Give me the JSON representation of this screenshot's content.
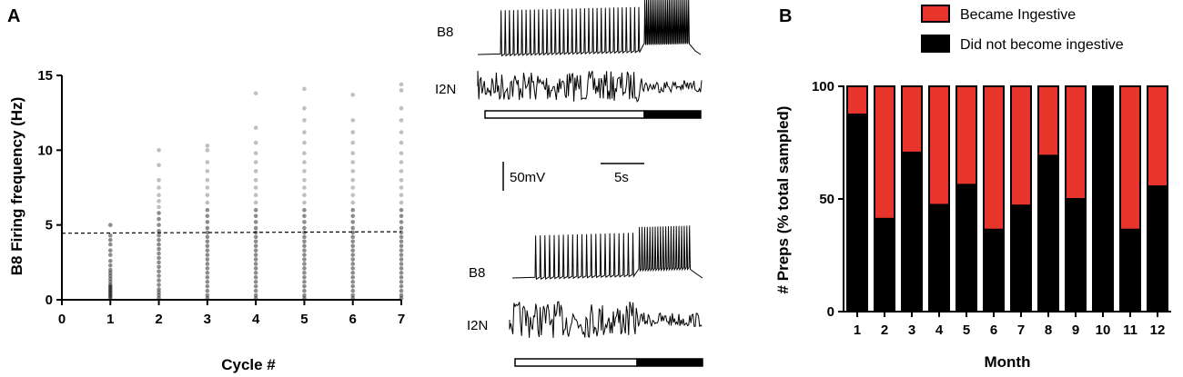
{
  "panels": {
    "a": "A",
    "b": "B"
  },
  "colors": {
    "became": "#e8352b",
    "not_became": "#000000",
    "dots": "#000000"
  },
  "traces": {
    "b8": "B8",
    "i2n": "I2N",
    "scale_mv": "50mV",
    "scale_s": "5s"
  },
  "chart_data": [
    {
      "type": "scatter",
      "title": "",
      "xlabel": "Cycle #",
      "ylabel": "B8 Firing frequency (Hz)",
      "xlim": [
        0,
        7
      ],
      "ylim": [
        0,
        15
      ],
      "x_ticks": [
        "0",
        "1",
        "2",
        "3",
        "4",
        "5",
        "6",
        "7"
      ],
      "y_ticks": [
        "0",
        "5",
        "10",
        "15"
      ],
      "threshold_line": {
        "x": [
          0,
          7
        ],
        "y": [
          4.45,
          4.55
        ],
        "style": "dashed"
      },
      "series": [
        {
          "x": 1,
          "max": 5.0,
          "values": [
            0.1,
            0.2,
            0.3,
            0.4,
            0.5,
            0.6,
            0.7,
            0.8,
            0.9,
            1.0,
            1.2,
            1.4,
            1.6,
            1.8,
            2.0,
            2.3,
            2.6,
            3.0,
            3.3,
            3.7,
            4.0,
            4.3,
            5.0
          ]
        },
        {
          "x": 2,
          "max": 10.0,
          "values": [
            0.1,
            0.3,
            0.5,
            0.7,
            1.0,
            1.3,
            1.6,
            1.9,
            2.2,
            2.5,
            2.8,
            3.1,
            3.4,
            3.7,
            4.0,
            4.3,
            4.6,
            5.0,
            5.4,
            5.8,
            6.2,
            6.6,
            7.0,
            7.5,
            8.0,
            9.0,
            10.0
          ]
        },
        {
          "x": 3,
          "max": 10.3,
          "values": [
            0.1,
            0.3,
            0.6,
            0.9,
            1.2,
            1.5,
            1.8,
            2.1,
            2.4,
            2.7,
            3.0,
            3.3,
            3.6,
            3.9,
            4.2,
            4.5,
            4.8,
            5.2,
            5.6,
            6.0,
            6.5,
            7.0,
            7.5,
            8.0,
            8.6,
            9.2,
            10.0,
            10.3
          ]
        },
        {
          "x": 4,
          "max": 13.8,
          "values": [
            0.1,
            0.3,
            0.6,
            0.9,
            1.2,
            1.5,
            1.8,
            2.1,
            2.4,
            2.7,
            3.0,
            3.3,
            3.6,
            3.9,
            4.2,
            4.5,
            4.8,
            5.2,
            5.6,
            6.0,
            6.5,
            7.0,
            7.5,
            8.0,
            8.6,
            9.2,
            9.8,
            10.5,
            11.5,
            13.8
          ]
        },
        {
          "x": 5,
          "max": 14.1,
          "values": [
            0.1,
            0.3,
            0.6,
            0.9,
            1.2,
            1.5,
            1.8,
            2.1,
            2.4,
            2.7,
            3.0,
            3.3,
            3.6,
            3.9,
            4.2,
            4.5,
            4.8,
            5.2,
            5.6,
            6.0,
            6.5,
            7.0,
            7.5,
            8.0,
            8.6,
            9.2,
            9.8,
            10.5,
            11.2,
            12.0,
            12.8,
            14.1
          ]
        },
        {
          "x": 6,
          "max": 13.7,
          "values": [
            0.1,
            0.3,
            0.6,
            0.9,
            1.2,
            1.5,
            1.8,
            2.1,
            2.4,
            2.7,
            3.0,
            3.3,
            3.6,
            3.9,
            4.2,
            4.5,
            4.8,
            5.2,
            5.6,
            6.0,
            6.5,
            7.0,
            7.5,
            8.0,
            8.6,
            9.2,
            9.8,
            10.5,
            11.2,
            12.0,
            13.7
          ]
        },
        {
          "x": 7,
          "max": 14.4,
          "values": [
            0.1,
            0.3,
            0.6,
            0.9,
            1.2,
            1.5,
            1.8,
            2.1,
            2.4,
            2.7,
            3.0,
            3.3,
            3.6,
            3.9,
            4.2,
            4.5,
            4.8,
            5.2,
            5.6,
            6.0,
            6.5,
            7.0,
            7.5,
            8.0,
            8.6,
            9.2,
            9.8,
            10.5,
            11.2,
            12.0,
            12.8,
            14.0,
            14.4
          ]
        }
      ]
    },
    {
      "type": "bar",
      "stacked": true,
      "title": "",
      "xlabel": "Month",
      "ylabel": "# Preps (% total sampled)",
      "ylim": [
        0,
        100
      ],
      "y_ticks": [
        "0",
        "50",
        "100"
      ],
      "categories": [
        "1",
        "2",
        "3",
        "4",
        "5",
        "6",
        "7",
        "8",
        "9",
        "10",
        "11",
        "12"
      ],
      "legend_position": "top",
      "series": [
        {
          "name": "Did not become ingestive",
          "values": [
            87.5,
            41.2,
            70.6,
            47.4,
            56.3,
            36.4,
            47.1,
            69.2,
            50.0,
            100.0,
            36.4,
            55.6
          ]
        },
        {
          "name": "Became Ingestive",
          "values": [
            12.5,
            58.8,
            29.4,
            52.6,
            43.7,
            63.6,
            52.9,
            30.8,
            50.0,
            0.0,
            63.6,
            44.4
          ]
        }
      ]
    }
  ]
}
